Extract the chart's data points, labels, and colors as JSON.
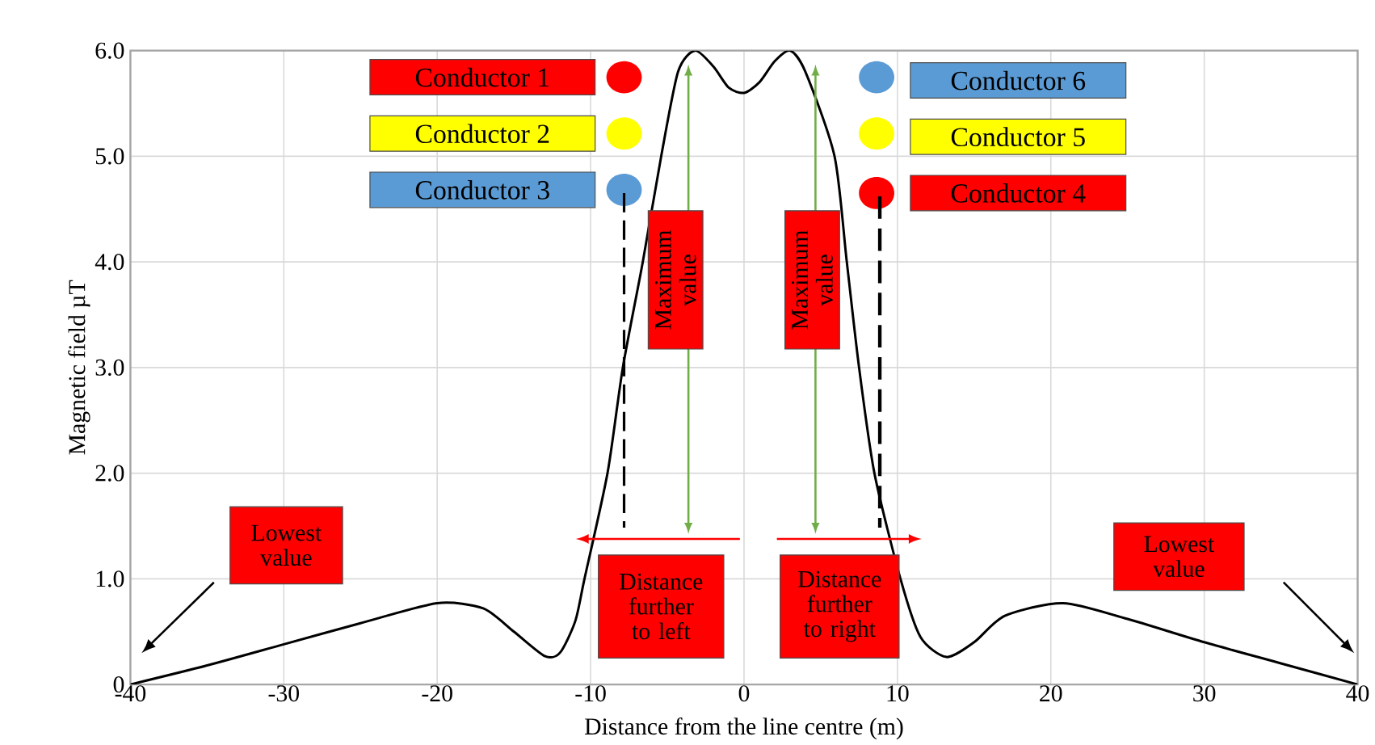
{
  "chart_data": {
    "type": "line",
    "xlabel": "Distance from the line centre (m)",
    "ylabel": "Magnetic field µT",
    "x": [
      -40,
      -35,
      -30,
      -25,
      -20,
      -17,
      -15,
      -13,
      -12,
      -11,
      -10.4,
      -8.9,
      -7.9,
      -6.6,
      -5.4,
      -4.3,
      -3.2,
      -2,
      -1,
      0,
      1,
      2,
      3,
      4,
      5.9,
      6.7,
      7.5,
      8.5,
      10.2,
      11.5,
      13.2,
      15,
      17,
      20.8,
      25,
      30,
      35,
      40
    ],
    "series": [
      {
        "color": "#000000",
        "values": [
          0,
          0.18,
          0.38,
          0.58,
          0.77,
          0.72,
          0.5,
          0.27,
          0.3,
          0.6,
          1.0,
          2.0,
          3.0,
          4.0,
          5.0,
          5.8,
          6.0,
          5.85,
          5.65,
          5.6,
          5.7,
          5.9,
          6.0,
          5.8,
          5.0,
          4.0,
          3.0,
          2.0,
          1.0,
          0.45,
          0.26,
          0.4,
          0.65,
          0.77,
          0.62,
          0.4,
          0.2,
          0
        ]
      }
    ],
    "xlim": [
      -40,
      40
    ],
    "xticks": [
      -40,
      -30,
      -20,
      -10,
      0,
      10,
      20,
      30,
      40
    ],
    "ylim": [
      0,
      6
    ],
    "yticks": [
      0,
      {
        "value": 1,
        "label": "1.0"
      },
      {
        "value": 2,
        "label": "2.0"
      },
      {
        "value": 3,
        "label": "3.0"
      },
      {
        "value": 4,
        "label": "4.0"
      },
      {
        "value": 5,
        "label": "5.0"
      },
      {
        "value": 6,
        "label": "6.0"
      }
    ],
    "grid": true,
    "annotations": [
      "Conductor 1",
      "Conductor 2",
      "Conductor 3",
      "Conductor 6",
      "Conductor 5",
      "Conductor 4",
      "Maximum value",
      "Maximum value",
      "Distance further to left",
      "Distance further to right",
      "Lowest value",
      "Lowest value"
    ]
  }
}
